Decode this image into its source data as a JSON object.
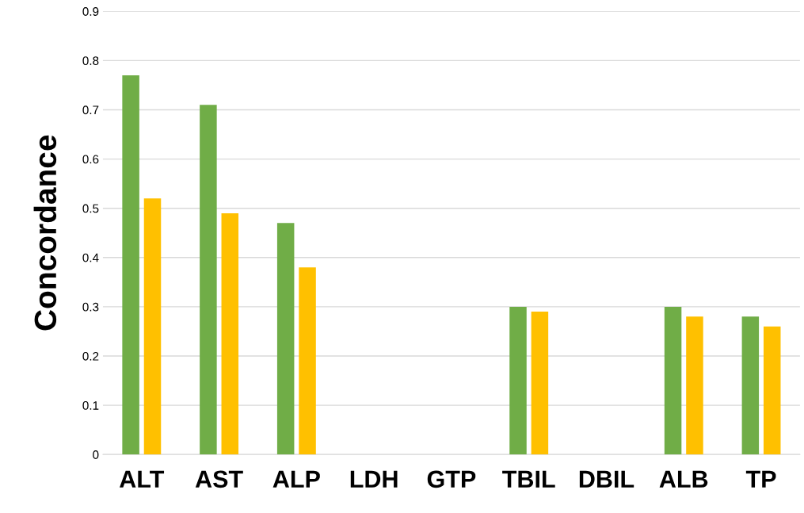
{
  "chart_data": {
    "type": "bar",
    "ylabel": "Concordance",
    "categories": [
      "ALT",
      "AST",
      "ALP",
      "LDH",
      "GTP",
      "TBIL",
      "DBIL",
      "ALB",
      "TP"
    ],
    "series": [
      {
        "color": "#70ad47",
        "values": [
          0.77,
          0.71,
          0.47,
          null,
          null,
          0.3,
          null,
          0.3,
          0.28
        ]
      },
      {
        "color": "#ffc000",
        "values": [
          0.52,
          0.49,
          0.38,
          null,
          null,
          0.29,
          null,
          0.28,
          0.26
        ]
      }
    ],
    "ylim": [
      0,
      0.9
    ],
    "yticks": [
      0,
      0.1,
      0.2,
      0.3,
      0.4,
      0.5,
      0.6,
      0.7,
      0.8,
      0.9
    ],
    "grid": "y",
    "legend": false
  }
}
